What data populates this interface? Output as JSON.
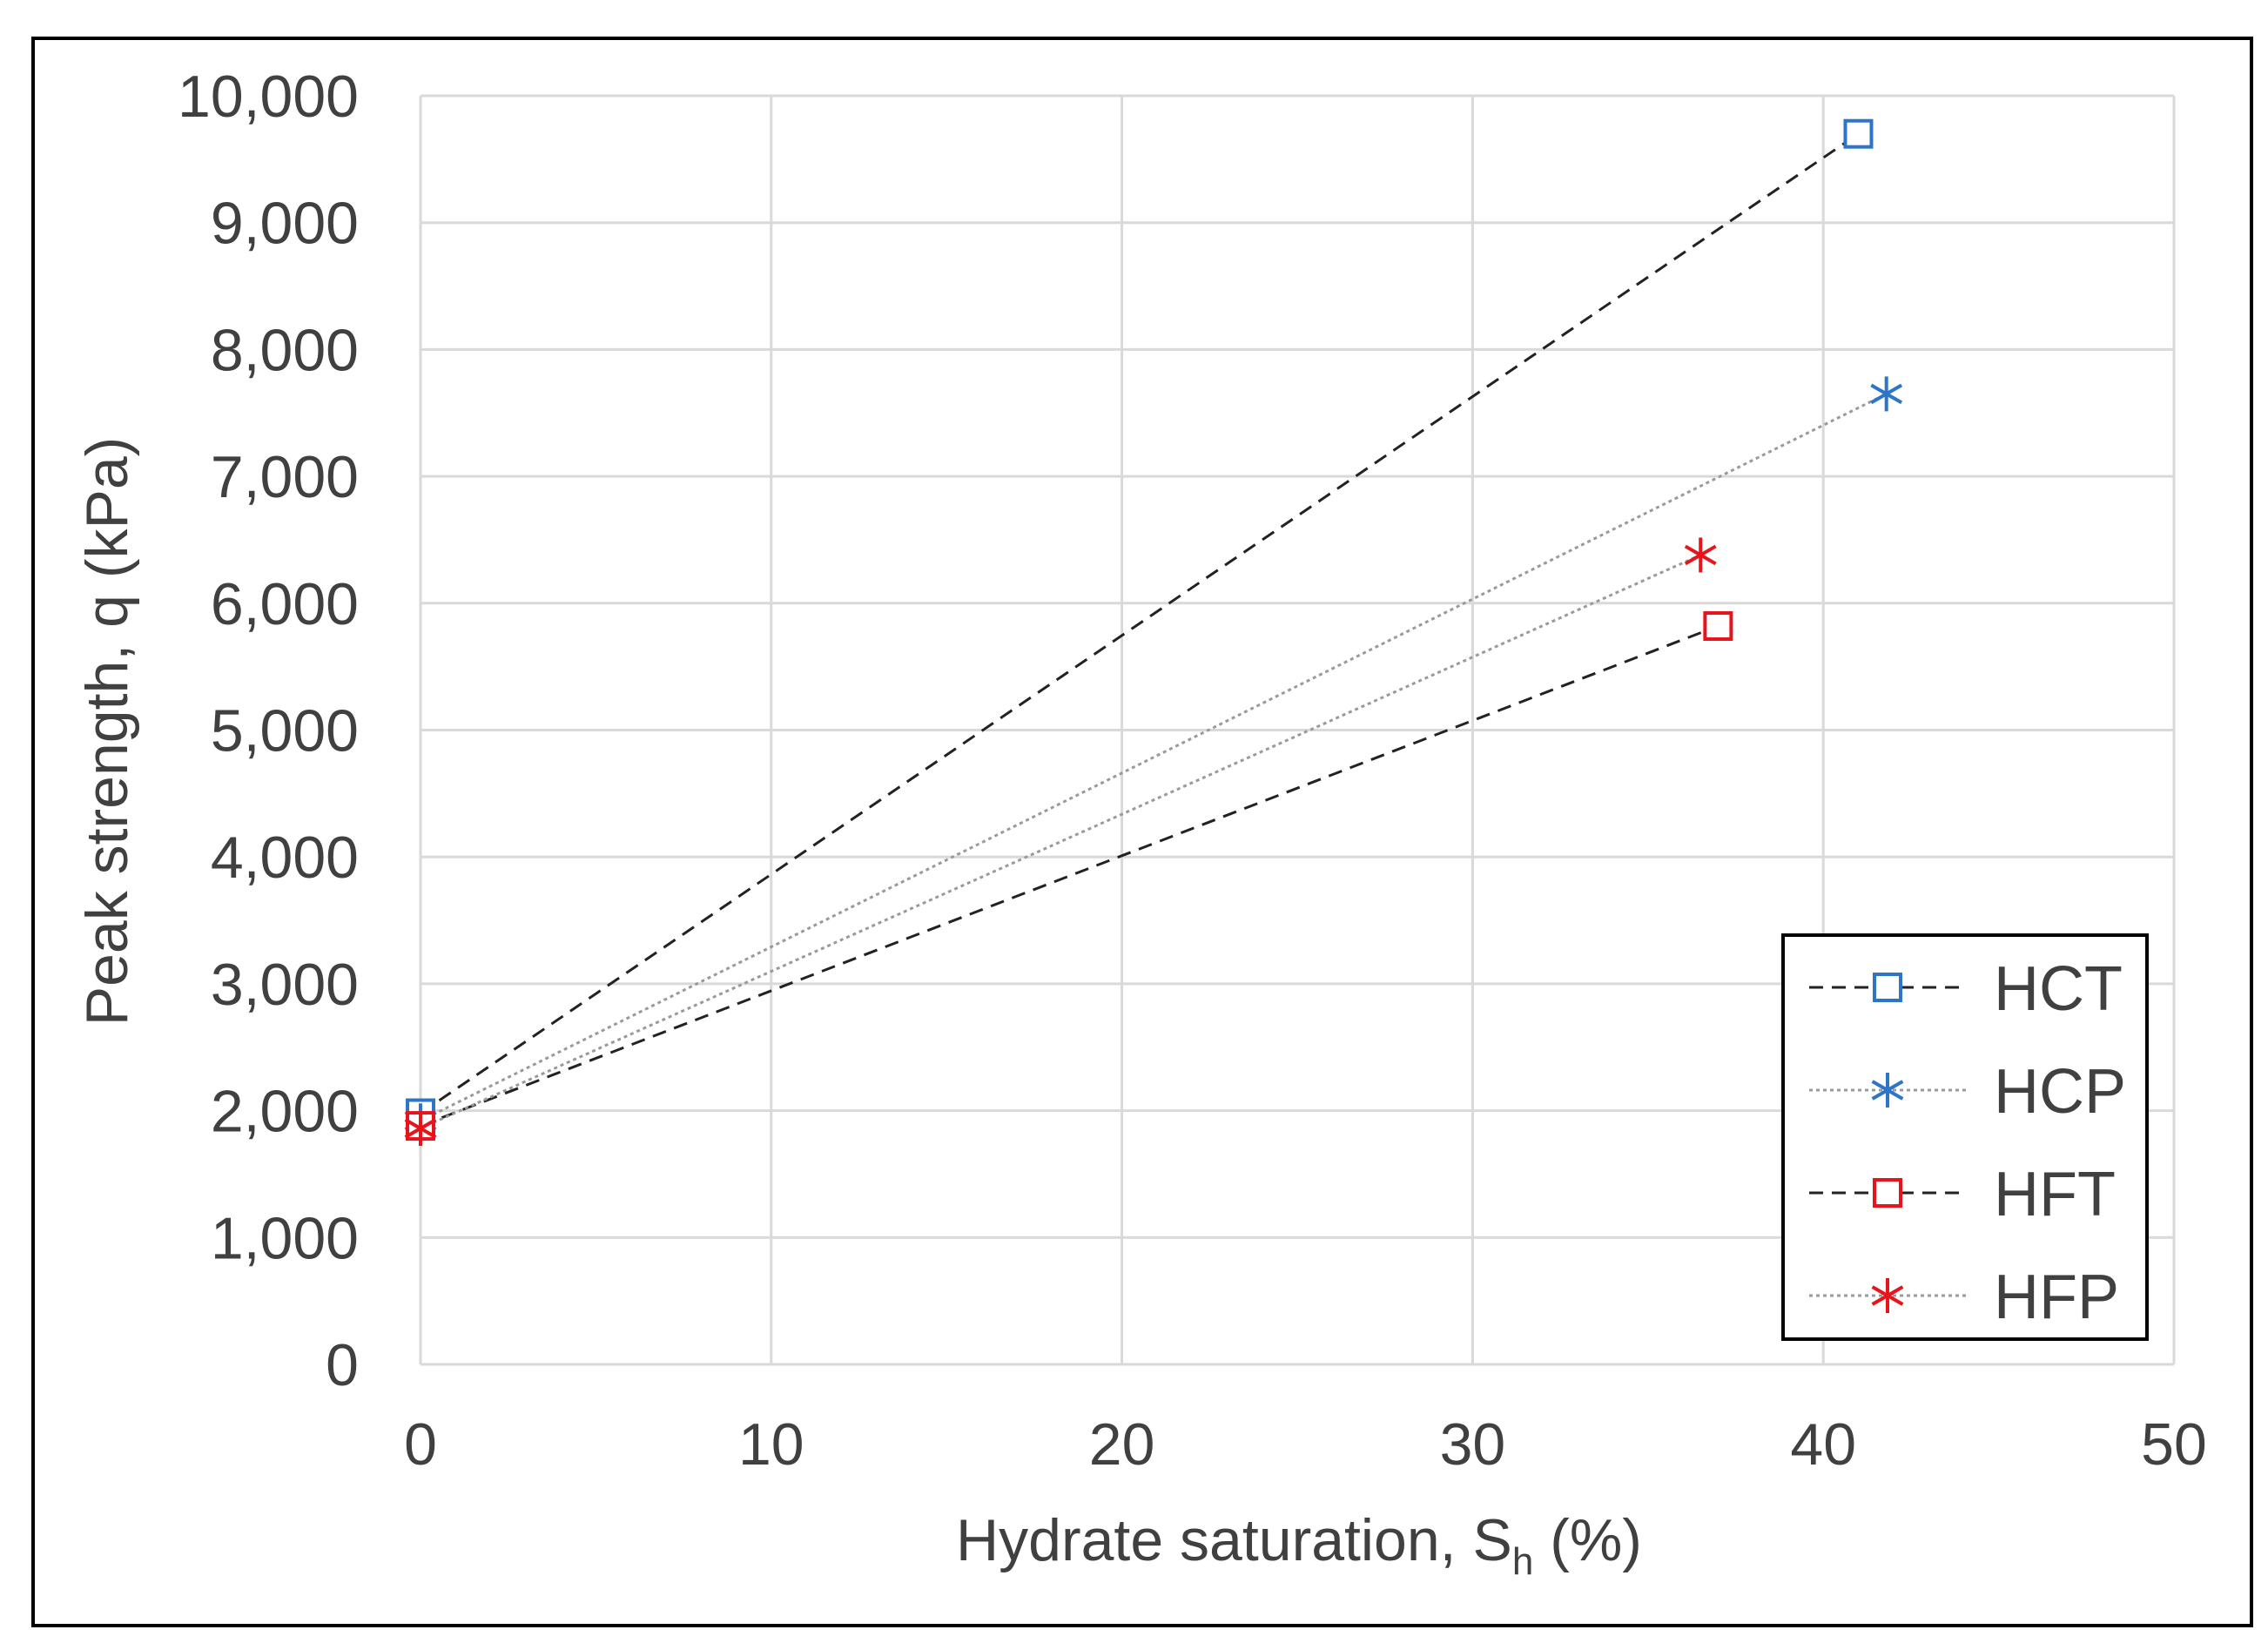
{
  "chart_data": {
    "type": "scatter",
    "title": "",
    "xlabel_main": "Hydrate saturation, S",
    "xlabel_sub": "h",
    "xlabel_tail": " (%)",
    "ylabel": "Peak strength, q (kPa)",
    "xlim": [
      0,
      50
    ],
    "ylim": [
      0,
      10000
    ],
    "x_ticks": [
      0,
      10,
      20,
      30,
      40,
      50
    ],
    "x_tick_labels": [
      "0",
      "10",
      "20",
      "30",
      "40",
      "50"
    ],
    "y_ticks": [
      0,
      1000,
      2000,
      3000,
      4000,
      5000,
      6000,
      7000,
      8000,
      9000,
      10000
    ],
    "y_tick_labels": [
      "0",
      "1,000",
      "2,000",
      "3,000",
      "4,000",
      "5,000",
      "6,000",
      "7,000",
      "8,000",
      "9,000",
      "10,000"
    ],
    "grid": true,
    "legend_position": "bottom-right",
    "series": [
      {
        "name": "HCT",
        "marker": "square",
        "color": "#2E75C8",
        "line_color": "#222222",
        "line_style": "dashed",
        "points": [
          [
            0,
            1980
          ],
          [
            41,
            9700
          ]
        ]
      },
      {
        "name": "HCP",
        "marker": "asterisk",
        "color": "#2E75C8",
        "line_color": "#9A9A9A",
        "line_style": "dotted",
        "points": [
          [
            0,
            1920
          ],
          [
            41.8,
            7650
          ]
        ]
      },
      {
        "name": "HFT",
        "marker": "square",
        "color": "#E8141C",
        "line_color": "#222222",
        "line_style": "dashed",
        "points": [
          [
            0,
            1880
          ],
          [
            37,
            5820
          ]
        ]
      },
      {
        "name": "HFP",
        "marker": "asterisk",
        "color": "#E8141C",
        "line_color": "#9A9A9A",
        "line_style": "dotted",
        "points": [
          [
            0,
            1860
          ],
          [
            36.5,
            6380
          ]
        ]
      }
    ]
  },
  "colors": {
    "gridline": "#D9D9D9",
    "frame": "#000000",
    "text": "#404040"
  }
}
